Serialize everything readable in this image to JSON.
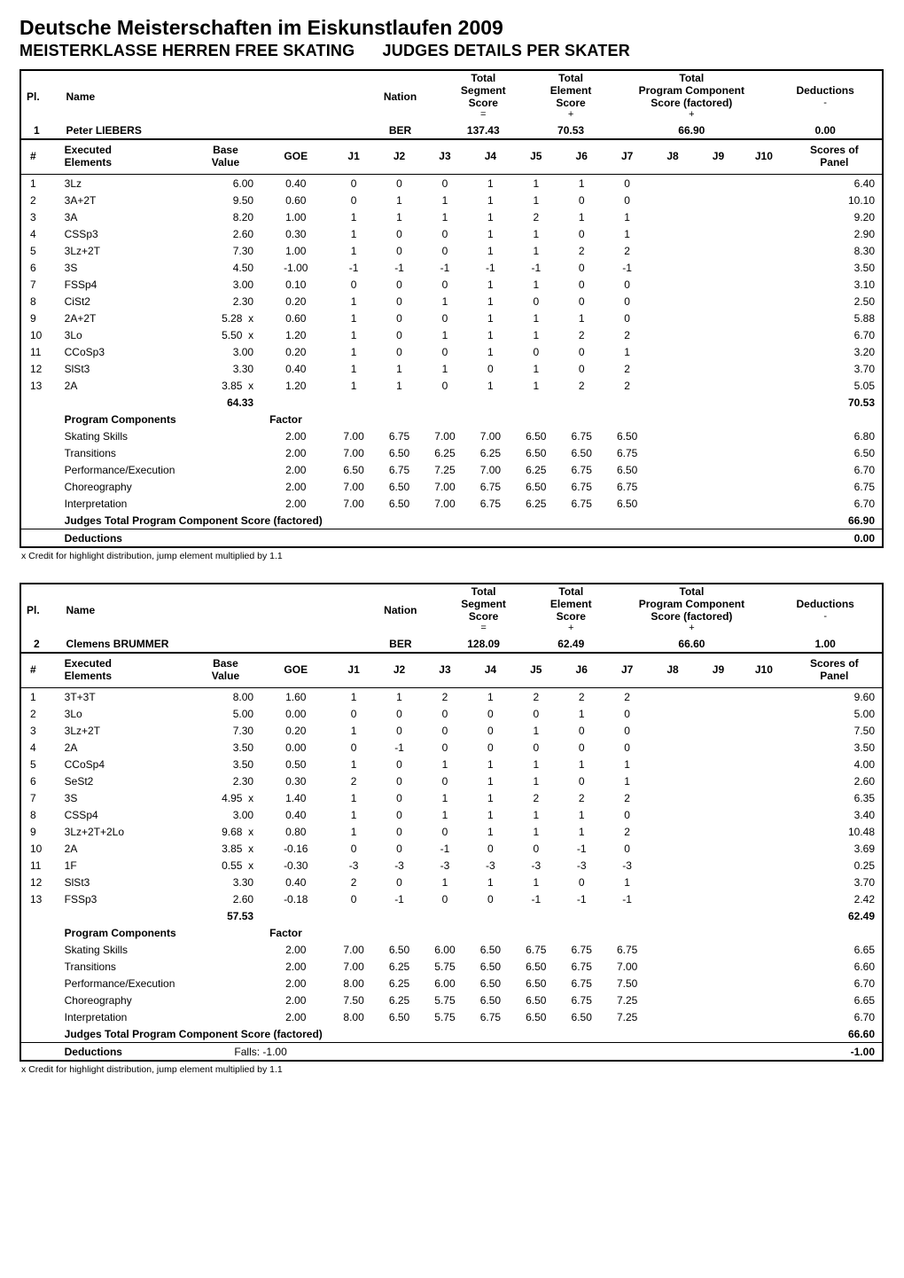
{
  "doc": {
    "title": "Deutsche Meisterschaften im Eiskunstlaufen 2009",
    "subtitle_left": "MEISTERKLASSE HERREN FREE SKATING",
    "subtitle_right": "JUDGES DETAILS PER SKATER"
  },
  "header_labels": {
    "pl": "Pl.",
    "name": "Name",
    "nation": "Nation",
    "segment": {
      "l1": "Total",
      "l2": "Segment",
      "l3": "Score",
      "op": "="
    },
    "element": {
      "l1": "Total",
      "l2": "Element",
      "l3": "Score",
      "op": "+"
    },
    "component": {
      "l1": "Total",
      "l2": "Program Component",
      "l3": "Score (factored)",
      "op": "+"
    },
    "deductions": {
      "l1": "Deductions",
      "op": "-"
    }
  },
  "elem_head": {
    "num": "#",
    "exec": "Executed\nElements",
    "bv": "Base\nValue",
    "goe": "GOE",
    "j": [
      "J1",
      "J2",
      "J3",
      "J4",
      "J5",
      "J6",
      "J7",
      "J8",
      "J9",
      "J10"
    ],
    "scores": "Scores of\nPanel"
  },
  "comp_labels": {
    "header": "Program Components",
    "factor": "Factor",
    "total": "Judges Total Program Component Score (factored)",
    "ded": "Deductions"
  },
  "footnote": "x  Credit for highlight distribution, jump element multiplied by 1.1",
  "skaters": [
    {
      "pl": "1",
      "name": "Peter LIEBERS",
      "nation": "BER",
      "segment": "137.43",
      "element": "70.53",
      "component_score": "66.90",
      "deduction": "0.00",
      "elements": [
        {
          "n": "1",
          "el": "3Lz",
          "bv": "6.00",
          "x": "",
          "goe": "0.40",
          "j": [
            "0",
            "0",
            "0",
            "1",
            "1",
            "1",
            "0",
            "",
            "",
            ""
          ],
          "sc": "6.40"
        },
        {
          "n": "2",
          "el": "3A+2T",
          "bv": "9.50",
          "x": "",
          "goe": "0.60",
          "j": [
            "0",
            "1",
            "1",
            "1",
            "1",
            "0",
            "0",
            "",
            "",
            ""
          ],
          "sc": "10.10"
        },
        {
          "n": "3",
          "el": "3A",
          "bv": "8.20",
          "x": "",
          "goe": "1.00",
          "j": [
            "1",
            "1",
            "1",
            "1",
            "2",
            "1",
            "1",
            "",
            "",
            ""
          ],
          "sc": "9.20"
        },
        {
          "n": "4",
          "el": "CSSp3",
          "bv": "2.60",
          "x": "",
          "goe": "0.30",
          "j": [
            "1",
            "0",
            "0",
            "1",
            "1",
            "0",
            "1",
            "",
            "",
            ""
          ],
          "sc": "2.90"
        },
        {
          "n": "5",
          "el": "3Lz+2T",
          "bv": "7.30",
          "x": "",
          "goe": "1.00",
          "j": [
            "1",
            "0",
            "0",
            "1",
            "1",
            "2",
            "2",
            "",
            "",
            ""
          ],
          "sc": "8.30"
        },
        {
          "n": "6",
          "el": "3S",
          "bv": "4.50",
          "x": "",
          "goe": "-1.00",
          "j": [
            "-1",
            "-1",
            "-1",
            "-1",
            "-1",
            "0",
            "-1",
            "",
            "",
            ""
          ],
          "sc": "3.50"
        },
        {
          "n": "7",
          "el": "FSSp4",
          "bv": "3.00",
          "x": "",
          "goe": "0.10",
          "j": [
            "0",
            "0",
            "0",
            "1",
            "1",
            "0",
            "0",
            "",
            "",
            ""
          ],
          "sc": "3.10"
        },
        {
          "n": "8",
          "el": "CiSt2",
          "bv": "2.30",
          "x": "",
          "goe": "0.20",
          "j": [
            "1",
            "0",
            "1",
            "1",
            "0",
            "0",
            "0",
            "",
            "",
            ""
          ],
          "sc": "2.50"
        },
        {
          "n": "9",
          "el": "2A+2T",
          "bv": "5.28",
          "x": "x",
          "goe": "0.60",
          "j": [
            "1",
            "0",
            "0",
            "1",
            "1",
            "1",
            "0",
            "",
            "",
            ""
          ],
          "sc": "5.88"
        },
        {
          "n": "10",
          "el": "3Lo",
          "bv": "5.50",
          "x": "x",
          "goe": "1.20",
          "j": [
            "1",
            "0",
            "1",
            "1",
            "1",
            "2",
            "2",
            "",
            "",
            ""
          ],
          "sc": "6.70"
        },
        {
          "n": "11",
          "el": "CCoSp3",
          "bv": "3.00",
          "x": "",
          "goe": "0.20",
          "j": [
            "1",
            "0",
            "0",
            "1",
            "0",
            "0",
            "1",
            "",
            "",
            ""
          ],
          "sc": "3.20"
        },
        {
          "n": "12",
          "el": "SlSt3",
          "bv": "3.30",
          "x": "",
          "goe": "0.40",
          "j": [
            "1",
            "1",
            "1",
            "0",
            "1",
            "0",
            "2",
            "",
            "",
            ""
          ],
          "sc": "3.70"
        },
        {
          "n": "13",
          "el": "2A",
          "bv": "3.85",
          "x": "x",
          "goe": "1.20",
          "j": [
            "1",
            "1",
            "0",
            "1",
            "1",
            "2",
            "2",
            "",
            "",
            ""
          ],
          "sc": "5.05"
        }
      ],
      "bv_total": "64.33",
      "panel_total": "70.53",
      "components": [
        {
          "name": "Skating Skills",
          "factor": "2.00",
          "j": [
            "7.00",
            "6.75",
            "7.00",
            "7.00",
            "6.50",
            "6.75",
            "6.50",
            "",
            "",
            ""
          ],
          "sc": "6.80"
        },
        {
          "name": "Transitions",
          "factor": "2.00",
          "j": [
            "7.00",
            "6.50",
            "6.25",
            "6.25",
            "6.50",
            "6.50",
            "6.75",
            "",
            "",
            ""
          ],
          "sc": "6.50"
        },
        {
          "name": "Performance/Execution",
          "factor": "2.00",
          "j": [
            "6.50",
            "6.75",
            "7.25",
            "7.00",
            "6.25",
            "6.75",
            "6.50",
            "",
            "",
            ""
          ],
          "sc": "6.70"
        },
        {
          "name": "Choreography",
          "factor": "2.00",
          "j": [
            "7.00",
            "6.50",
            "7.00",
            "6.75",
            "6.50",
            "6.75",
            "6.75",
            "",
            "",
            ""
          ],
          "sc": "6.75"
        },
        {
          "name": "Interpretation",
          "factor": "2.00",
          "j": [
            "7.00",
            "6.50",
            "7.00",
            "6.75",
            "6.25",
            "6.75",
            "6.50",
            "",
            "",
            ""
          ],
          "sc": "6.70"
        }
      ],
      "comp_total": "66.90",
      "ded_detail": "",
      "ded_total": "0.00"
    },
    {
      "pl": "2",
      "name": "Clemens BRUMMER",
      "nation": "BER",
      "segment": "128.09",
      "element": "62.49",
      "component_score": "66.60",
      "deduction": "1.00",
      "elements": [
        {
          "n": "1",
          "el": "3T+3T",
          "bv": "8.00",
          "x": "",
          "goe": "1.60",
          "j": [
            "1",
            "1",
            "2",
            "1",
            "2",
            "2",
            "2",
            "",
            "",
            ""
          ],
          "sc": "9.60"
        },
        {
          "n": "2",
          "el": "3Lo",
          "bv": "5.00",
          "x": "",
          "goe": "0.00",
          "j": [
            "0",
            "0",
            "0",
            "0",
            "0",
            "1",
            "0",
            "",
            "",
            ""
          ],
          "sc": "5.00"
        },
        {
          "n": "3",
          "el": "3Lz+2T",
          "bv": "7.30",
          "x": "",
          "goe": "0.20",
          "j": [
            "1",
            "0",
            "0",
            "0",
            "1",
            "0",
            "0",
            "",
            "",
            ""
          ],
          "sc": "7.50"
        },
        {
          "n": "4",
          "el": "2A",
          "bv": "3.50",
          "x": "",
          "goe": "0.00",
          "j": [
            "0",
            "-1",
            "0",
            "0",
            "0",
            "0",
            "0",
            "",
            "",
            ""
          ],
          "sc": "3.50"
        },
        {
          "n": "5",
          "el": "CCoSp4",
          "bv": "3.50",
          "x": "",
          "goe": "0.50",
          "j": [
            "1",
            "0",
            "1",
            "1",
            "1",
            "1",
            "1",
            "",
            "",
            ""
          ],
          "sc": "4.00"
        },
        {
          "n": "6",
          "el": "SeSt2",
          "bv": "2.30",
          "x": "",
          "goe": "0.30",
          "j": [
            "2",
            "0",
            "0",
            "1",
            "1",
            "0",
            "1",
            "",
            "",
            ""
          ],
          "sc": "2.60"
        },
        {
          "n": "7",
          "el": "3S",
          "bv": "4.95",
          "x": "x",
          "goe": "1.40",
          "j": [
            "1",
            "0",
            "1",
            "1",
            "2",
            "2",
            "2",
            "",
            "",
            ""
          ],
          "sc": "6.35"
        },
        {
          "n": "8",
          "el": "CSSp4",
          "bv": "3.00",
          "x": "",
          "goe": "0.40",
          "j": [
            "1",
            "0",
            "1",
            "1",
            "1",
            "1",
            "0",
            "",
            "",
            ""
          ],
          "sc": "3.40"
        },
        {
          "n": "9",
          "el": "3Lz+2T+2Lo",
          "bv": "9.68",
          "x": "x",
          "goe": "0.80",
          "j": [
            "1",
            "0",
            "0",
            "1",
            "1",
            "1",
            "2",
            "",
            "",
            ""
          ],
          "sc": "10.48"
        },
        {
          "n": "10",
          "el": "2A",
          "bv": "3.85",
          "x": "x",
          "goe": "-0.16",
          "j": [
            "0",
            "0",
            "-1",
            "0",
            "0",
            "-1",
            "0",
            "",
            "",
            ""
          ],
          "sc": "3.69"
        },
        {
          "n": "11",
          "el": "1F",
          "bv": "0.55",
          "x": "x",
          "goe": "-0.30",
          "j": [
            "-3",
            "-3",
            "-3",
            "-3",
            "-3",
            "-3",
            "-3",
            "",
            "",
            ""
          ],
          "sc": "0.25"
        },
        {
          "n": "12",
          "el": "SlSt3",
          "bv": "3.30",
          "x": "",
          "goe": "0.40",
          "j": [
            "2",
            "0",
            "1",
            "1",
            "1",
            "0",
            "1",
            "",
            "",
            ""
          ],
          "sc": "3.70"
        },
        {
          "n": "13",
          "el": "FSSp3",
          "bv": "2.60",
          "x": "",
          "goe": "-0.18",
          "j": [
            "0",
            "-1",
            "0",
            "0",
            "-1",
            "-1",
            "-1",
            "",
            "",
            ""
          ],
          "sc": "2.42"
        }
      ],
      "bv_total": "57.53",
      "panel_total": "62.49",
      "components": [
        {
          "name": "Skating Skills",
          "factor": "2.00",
          "j": [
            "7.00",
            "6.50",
            "6.00",
            "6.50",
            "6.75",
            "6.75",
            "6.75",
            "",
            "",
            ""
          ],
          "sc": "6.65"
        },
        {
          "name": "Transitions",
          "factor": "2.00",
          "j": [
            "7.00",
            "6.25",
            "5.75",
            "6.50",
            "6.50",
            "6.75",
            "7.00",
            "",
            "",
            ""
          ],
          "sc": "6.60"
        },
        {
          "name": "Performance/Execution",
          "factor": "2.00",
          "j": [
            "8.00",
            "6.25",
            "6.00",
            "6.50",
            "6.50",
            "6.75",
            "7.50",
            "",
            "",
            ""
          ],
          "sc": "6.70"
        },
        {
          "name": "Choreography",
          "factor": "2.00",
          "j": [
            "7.50",
            "6.25",
            "5.75",
            "6.50",
            "6.50",
            "6.75",
            "7.25",
            "",
            "",
            ""
          ],
          "sc": "6.65"
        },
        {
          "name": "Interpretation",
          "factor": "2.00",
          "j": [
            "8.00",
            "6.50",
            "5.75",
            "6.75",
            "6.50",
            "6.50",
            "7.25",
            "",
            "",
            ""
          ],
          "sc": "6.70"
        }
      ],
      "comp_total": "66.60",
      "ded_detail": "Falls:    -1.00",
      "ded_total": "-1.00"
    }
  ]
}
